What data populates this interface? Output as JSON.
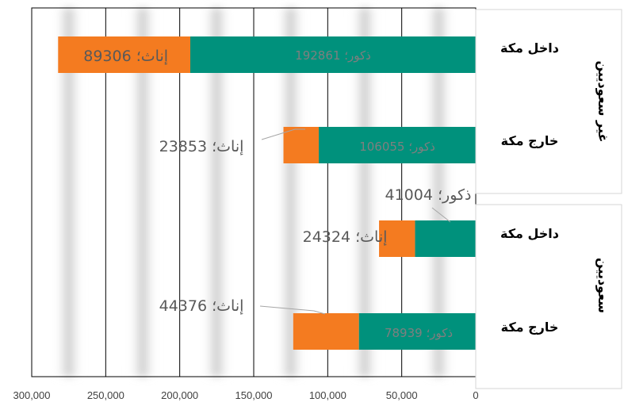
{
  "chart_data": {
    "type": "bar",
    "orientation": "horizontal-stacked",
    "x_direction": "reversed",
    "xlim": [
      0,
      300000
    ],
    "x_ticks": [
      "300,000",
      "250,000",
      "200,000",
      "150,000",
      "100,000",
      "50,000",
      "0"
    ],
    "grid": "vertical",
    "groups": [
      {
        "label": "غير سعوديين",
        "categories": [
          "داخل مكة",
          "خارج مكة"
        ]
      },
      {
        "label": "سعوديين",
        "categories": [
          "داخل مكة",
          "خارج مكة"
        ]
      }
    ],
    "categories": [
      "داخل مكة",
      "خارج مكة",
      "داخل مكة",
      "خارج مكة"
    ],
    "series": [
      {
        "name": "ذكور",
        "color": "#00917c",
        "values": [
          192861,
          106055,
          41004,
          78939
        ]
      },
      {
        "name": "إناث",
        "color": "#f47b20",
        "values": [
          89306,
          23853,
          24324,
          44376
        ]
      }
    ],
    "data_labels": [
      {
        "male": "ذكور؛ 192861",
        "female": "إناث؛ 89306"
      },
      {
        "male": "ذكور؛ 106055",
        "female": "إناث؛ 23853"
      },
      {
        "male": "ذكور؛ 41004",
        "female": "إناث؛ 24324"
      },
      {
        "male": "ذكور؛ 78939",
        "female": "إناث؛ 44376"
      }
    ]
  }
}
